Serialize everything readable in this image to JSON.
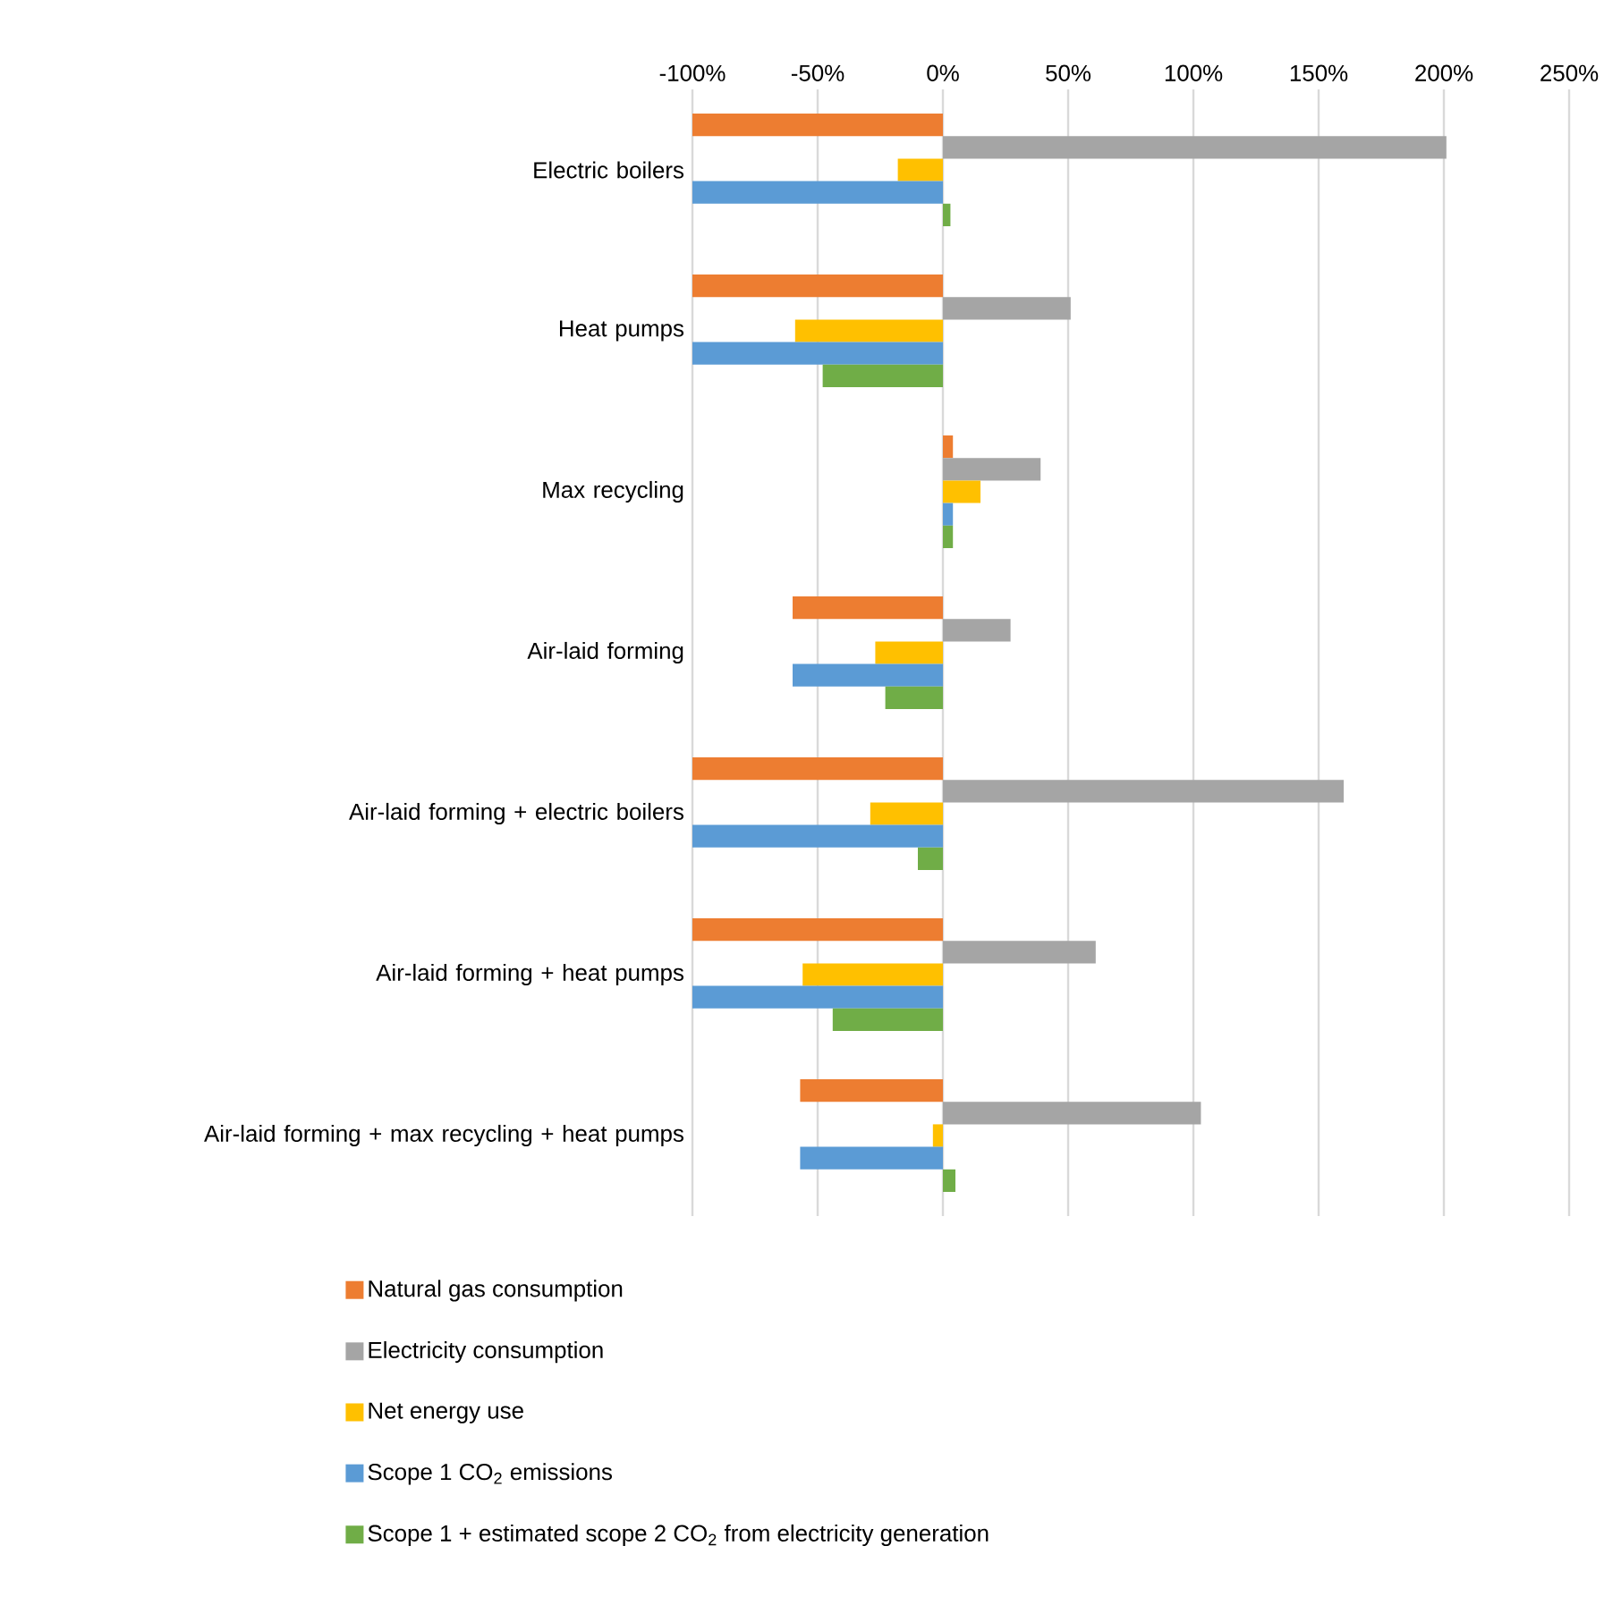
{
  "chart_data": {
    "type": "bar",
    "orientation": "horizontal",
    "categories": [
      "Electric boilers",
      "Heat pumps",
      "Max recycling",
      "Air-laid forming",
      "Air-laid forming + electric boilers",
      "Air-laid forming + heat pumps",
      "Air-laid forming + max recycling + heat pumps"
    ],
    "series": [
      {
        "name": "Natural gas consumption",
        "color": "#ed7d31",
        "values": [
          -100,
          -100,
          4,
          -60,
          -100,
          -100,
          -57
        ]
      },
      {
        "name": "Electricity consumption",
        "color": "#a5a5a5",
        "values": [
          201,
          51,
          39,
          27,
          160,
          61,
          103
        ]
      },
      {
        "name": "Net energy use",
        "color": "#ffc000",
        "values": [
          -18,
          -59,
          15,
          -27,
          -29,
          -56,
          -4
        ]
      },
      {
        "name": "Scope 1 CO$_{2}$ emissions",
        "color": "#5b9bd5",
        "values": [
          -100,
          -100,
          4,
          -60,
          -100,
          -100,
          -57
        ]
      },
      {
        "name": "Scope 1 + estimated scope 2 CO$_{2}$ from electricity generation",
        "color": "#70ad47",
        "values": [
          3,
          -48,
          4,
          -23,
          -10,
          -44,
          5
        ]
      }
    ],
    "xlim": [
      -100,
      250
    ],
    "xticks": [
      {
        "value": -100,
        "label": "-100%"
      },
      {
        "value": -50,
        "label": "-50%"
      },
      {
        "value": 0,
        "label": "0%"
      },
      {
        "value": 50,
        "label": "50%"
      },
      {
        "value": 100,
        "label": "100%"
      },
      {
        "value": 150,
        "label": "150%"
      },
      {
        "value": 200,
        "label": "200%"
      },
      {
        "value": 250,
        "label": "250%"
      }
    ],
    "grid": "x",
    "legend": "bottom"
  }
}
